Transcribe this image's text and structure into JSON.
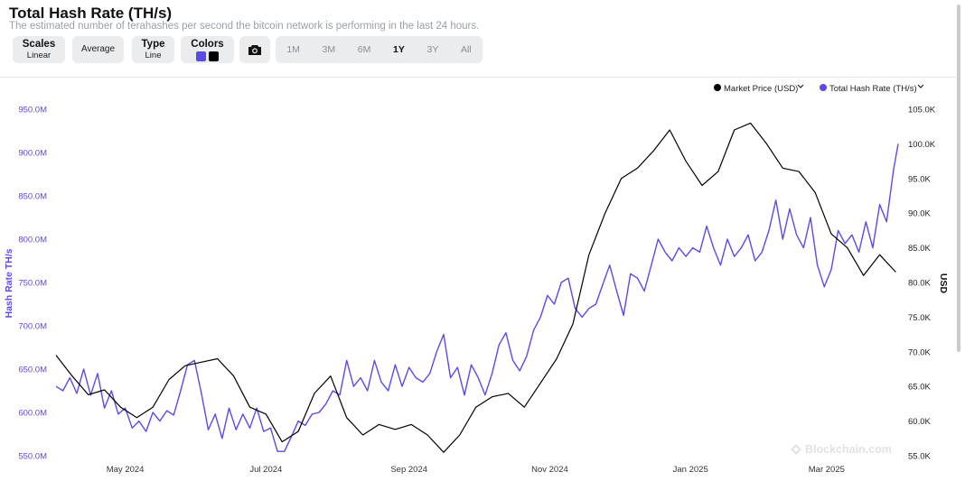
{
  "header": {
    "title": "Total Hash Rate (TH/s)",
    "subtitle": "The estimated number of terahashes per second the bitcoin network is performing in the last 24 hours."
  },
  "controls": {
    "scales": {
      "label": "Scales",
      "value": "Linear"
    },
    "average": {
      "label": "Average"
    },
    "type": {
      "label": "Type",
      "value": "Line"
    },
    "colors": {
      "label": "Colors",
      "swatches": [
        "#5b4be6",
        "#000000"
      ]
    },
    "camera_icon": "camera-icon",
    "ranges": [
      "1M",
      "3M",
      "6M",
      "1Y",
      "3Y",
      "All"
    ],
    "active_range": "1Y"
  },
  "legend": {
    "price": "Market Price (USD)",
    "hash": "Total Hash Rate (TH/s)",
    "chevron_icon": "chevron-down-icon"
  },
  "watermark": "Blockchain.com",
  "chart_data": {
    "type": "line",
    "ylabel_left": "Hash Rate TH/s",
    "ylabel_right": "USD",
    "x_ticks": [
      "May 2024",
      "Jul 2024",
      "Sep 2024",
      "Nov 2024",
      "Jan 2025",
      "Mar 2025"
    ],
    "y_left_ticks": [
      "550.0M",
      "600.0M",
      "650.0M",
      "700.0M",
      "750.0M",
      "800.0M",
      "850.0M",
      "900.0M",
      "950.0M"
    ],
    "y_right_ticks": [
      "55.0K",
      "60.0K",
      "65.0K",
      "70.0K",
      "75.0K",
      "80.0K",
      "85.0K",
      "90.0K",
      "95.0K",
      "100.0K",
      "105.0K"
    ],
    "ylim_left": [
      550,
      950
    ],
    "ylim_right": [
      55000,
      105000
    ],
    "xlim": [
      "2024-04-01",
      "2025-04-01"
    ],
    "grid": false,
    "legend_position": "top-right",
    "series": [
      {
        "name": "Total Hash Rate (TH/s)",
        "axis": "left",
        "color": "#5b4be6",
        "unit": "million TH/s",
        "points": [
          [
            "2024-04-01",
            630
          ],
          [
            "2024-04-04",
            625
          ],
          [
            "2024-04-07",
            640
          ],
          [
            "2024-04-10",
            622
          ],
          [
            "2024-04-13",
            650
          ],
          [
            "2024-04-16",
            620
          ],
          [
            "2024-04-19",
            645
          ],
          [
            "2024-04-22",
            605
          ],
          [
            "2024-04-25",
            625
          ],
          [
            "2024-04-28",
            598
          ],
          [
            "2024-05-01",
            605
          ],
          [
            "2024-05-04",
            582
          ],
          [
            "2024-05-07",
            590
          ],
          [
            "2024-05-10",
            578
          ],
          [
            "2024-05-13",
            600
          ],
          [
            "2024-05-16",
            590
          ],
          [
            "2024-05-19",
            602
          ],
          [
            "2024-05-22",
            597
          ],
          [
            "2024-05-25",
            625
          ],
          [
            "2024-05-28",
            655
          ],
          [
            "2024-05-31",
            660
          ],
          [
            "2024-06-03",
            622
          ],
          [
            "2024-06-06",
            580
          ],
          [
            "2024-06-09",
            598
          ],
          [
            "2024-06-12",
            570
          ],
          [
            "2024-06-15",
            605
          ],
          [
            "2024-06-18",
            580
          ],
          [
            "2024-06-21",
            598
          ],
          [
            "2024-06-24",
            582
          ],
          [
            "2024-06-27",
            605
          ],
          [
            "2024-06-30",
            578
          ],
          [
            "2024-07-03",
            582
          ],
          [
            "2024-07-06",
            555
          ],
          [
            "2024-07-09",
            555
          ],
          [
            "2024-07-12",
            572
          ],
          [
            "2024-07-15",
            590
          ],
          [
            "2024-07-18",
            585
          ],
          [
            "2024-07-21",
            598
          ],
          [
            "2024-07-24",
            600
          ],
          [
            "2024-07-27",
            610
          ],
          [
            "2024-07-30",
            625
          ],
          [
            "2024-08-02",
            620
          ],
          [
            "2024-08-05",
            660
          ],
          [
            "2024-08-08",
            630
          ],
          [
            "2024-08-11",
            640
          ],
          [
            "2024-08-14",
            625
          ],
          [
            "2024-08-17",
            660
          ],
          [
            "2024-08-20",
            635
          ],
          [
            "2024-08-23",
            625
          ],
          [
            "2024-08-26",
            655
          ],
          [
            "2024-08-29",
            630
          ],
          [
            "2024-09-01",
            652
          ],
          [
            "2024-09-04",
            640
          ],
          [
            "2024-09-07",
            635
          ],
          [
            "2024-09-10",
            645
          ],
          [
            "2024-09-13",
            670
          ],
          [
            "2024-09-16",
            690
          ],
          [
            "2024-09-19",
            640
          ],
          [
            "2024-09-22",
            652
          ],
          [
            "2024-09-25",
            620
          ],
          [
            "2024-09-28",
            655
          ],
          [
            "2024-10-01",
            640
          ],
          [
            "2024-10-04",
            620
          ],
          [
            "2024-10-07",
            645
          ],
          [
            "2024-10-10",
            678
          ],
          [
            "2024-10-13",
            692
          ],
          [
            "2024-10-16",
            660
          ],
          [
            "2024-10-19",
            648
          ],
          [
            "2024-10-22",
            665
          ],
          [
            "2024-10-25",
            695
          ],
          [
            "2024-10-28",
            710
          ],
          [
            "2024-10-31",
            735
          ],
          [
            "2024-11-03",
            725
          ],
          [
            "2024-11-06",
            750
          ],
          [
            "2024-11-09",
            755
          ],
          [
            "2024-11-12",
            720
          ],
          [
            "2024-11-15",
            710
          ],
          [
            "2024-11-18",
            720
          ],
          [
            "2024-11-21",
            725
          ],
          [
            "2024-11-24",
            748
          ],
          [
            "2024-11-27",
            770
          ],
          [
            "2024-11-30",
            740
          ],
          [
            "2024-12-03",
            712
          ],
          [
            "2024-12-06",
            760
          ],
          [
            "2024-12-09",
            755
          ],
          [
            "2024-12-12",
            740
          ],
          [
            "2024-12-15",
            770
          ],
          [
            "2024-12-18",
            800
          ],
          [
            "2024-12-21",
            785
          ],
          [
            "2024-12-24",
            775
          ],
          [
            "2024-12-27",
            790
          ],
          [
            "2024-12-30",
            780
          ],
          [
            "2025-01-02",
            790
          ],
          [
            "2025-01-05",
            785
          ],
          [
            "2025-01-08",
            815
          ],
          [
            "2025-01-11",
            790
          ],
          [
            "2025-01-14",
            770
          ],
          [
            "2025-01-17",
            800
          ],
          [
            "2025-01-20",
            780
          ],
          [
            "2025-01-23",
            790
          ],
          [
            "2025-01-26",
            805
          ],
          [
            "2025-01-29",
            775
          ],
          [
            "2025-02-01",
            785
          ],
          [
            "2025-02-04",
            810
          ],
          [
            "2025-02-07",
            845
          ],
          [
            "2025-02-10",
            800
          ],
          [
            "2025-02-13",
            835
          ],
          [
            "2025-02-16",
            805
          ],
          [
            "2025-02-19",
            790
          ],
          [
            "2025-02-22",
            825
          ],
          [
            "2025-02-25",
            770
          ],
          [
            "2025-02-28",
            745
          ],
          [
            "2025-03-03",
            765
          ],
          [
            "2025-03-06",
            810
          ],
          [
            "2025-03-09",
            795
          ],
          [
            "2025-03-12",
            805
          ],
          [
            "2025-03-15",
            785
          ],
          [
            "2025-03-18",
            820
          ],
          [
            "2025-03-21",
            790
          ],
          [
            "2025-03-24",
            840
          ],
          [
            "2025-03-27",
            820
          ],
          [
            "2025-03-30",
            880
          ],
          [
            "2025-04-01",
            910
          ]
        ]
      },
      {
        "name": "Market Price (USD)",
        "axis": "right",
        "color": "#000000",
        "unit": "USD",
        "points": [
          [
            "2024-04-01",
            69500
          ],
          [
            "2024-04-08",
            66500
          ],
          [
            "2024-04-15",
            63800
          ],
          [
            "2024-04-22",
            64500
          ],
          [
            "2024-04-29",
            62000
          ],
          [
            "2024-05-06",
            60500
          ],
          [
            "2024-05-13",
            62000
          ],
          [
            "2024-05-20",
            66000
          ],
          [
            "2024-05-27",
            68000
          ],
          [
            "2024-06-03",
            68500
          ],
          [
            "2024-06-10",
            69000
          ],
          [
            "2024-06-17",
            66500
          ],
          [
            "2024-06-24",
            62000
          ],
          [
            "2024-07-01",
            61000
          ],
          [
            "2024-07-08",
            57000
          ],
          [
            "2024-07-15",
            58500
          ],
          [
            "2024-07-22",
            64000
          ],
          [
            "2024-07-29",
            66500
          ],
          [
            "2024-08-05",
            60500
          ],
          [
            "2024-08-12",
            58000
          ],
          [
            "2024-08-19",
            59500
          ],
          [
            "2024-08-26",
            58800
          ],
          [
            "2024-09-02",
            59500
          ],
          [
            "2024-09-09",
            58000
          ],
          [
            "2024-09-16",
            55500
          ],
          [
            "2024-09-23",
            58000
          ],
          [
            "2024-09-30",
            62000
          ],
          [
            "2024-10-07",
            63500
          ],
          [
            "2024-10-14",
            64000
          ],
          [
            "2024-10-21",
            62000
          ],
          [
            "2024-10-28",
            65500
          ],
          [
            "2024-11-04",
            69000
          ],
          [
            "2024-11-11",
            74000
          ],
          [
            "2024-11-18",
            84000
          ],
          [
            "2024-11-25",
            90000
          ],
          [
            "2024-12-02",
            95000
          ],
          [
            "2024-12-09",
            96500
          ],
          [
            "2024-12-16",
            99000
          ],
          [
            "2024-12-23",
            102000
          ],
          [
            "2024-12-30",
            97500
          ],
          [
            "2025-01-06",
            94000
          ],
          [
            "2025-01-13",
            96000
          ],
          [
            "2025-01-20",
            102000
          ],
          [
            "2025-01-27",
            103000
          ],
          [
            "2025-02-03",
            100000
          ],
          [
            "2025-02-10",
            96500
          ],
          [
            "2025-02-17",
            96000
          ],
          [
            "2025-02-24",
            93000
          ],
          [
            "2025-03-03",
            87000
          ],
          [
            "2025-03-10",
            85000
          ],
          [
            "2025-03-17",
            81000
          ],
          [
            "2025-03-24",
            84000
          ],
          [
            "2025-03-31",
            81500
          ]
        ]
      }
    ]
  }
}
